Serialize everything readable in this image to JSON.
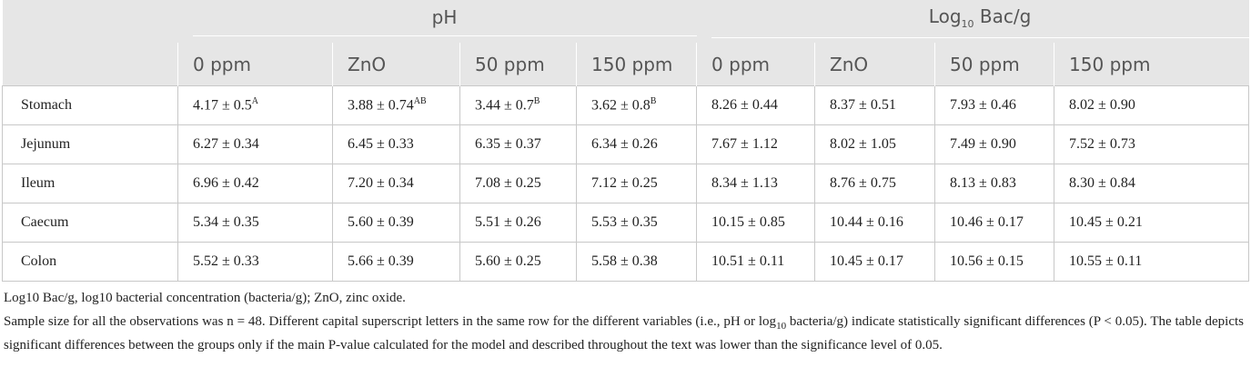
{
  "table": {
    "groups": [
      {
        "text": "pH"
      },
      {
        "text": "Log",
        "sub": "10",
        "rest": " Bac/g"
      }
    ],
    "columns": [
      "0 ppm",
      "ZnO",
      "50 ppm",
      "150 ppm",
      "0 ppm",
      "ZnO",
      "50 ppm",
      "150 ppm"
    ],
    "rows": [
      {
        "label": "Stomach",
        "cells": [
          {
            "text": "4.17 ± 0.5",
            "sup": "A"
          },
          {
            "text": "3.88 ± 0.74",
            "sup": "AB"
          },
          {
            "text": "3.44 ± 0.7",
            "sup": "B"
          },
          {
            "text": "3.62 ± 0.8",
            "sup": "B"
          },
          "8.26 ± 0.44",
          "8.37 ± 0.51",
          "7.93 ± 0.46",
          "8.02 ± 0.90"
        ]
      },
      {
        "label": "Jejunum",
        "cells": [
          "6.27 ± 0.34",
          "6.45 ± 0.33",
          "6.35 ± 0.37",
          "6.34 ± 0.26",
          "7.67 ± 1.12",
          "8.02 ± 1.05",
          "7.49 ± 0.90",
          "7.52 ± 0.73"
        ]
      },
      {
        "label": "Ileum",
        "cells": [
          "6.96 ± 0.42",
          "7.20 ± 0.34",
          "7.08 ± 0.25",
          "7.12 ± 0.25",
          "8.34 ± 1.13",
          "8.76 ± 0.75",
          "8.13 ± 0.83",
          "8.30 ± 0.84"
        ]
      },
      {
        "label": "Caecum",
        "cells": [
          "5.34 ± 0.35",
          "5.60 ± 0.39",
          "5.51 ± 0.26",
          "5.53 ± 0.35",
          "10.15 ± 0.85",
          "10.44 ± 0.16",
          "10.46 ± 0.17",
          "10.45 ± 0.21"
        ]
      },
      {
        "label": "Colon",
        "cells": [
          "5.52 ± 0.33",
          "5.66 ± 0.39",
          "5.60 ± 0.25",
          "5.58 ± 0.38",
          "10.51 ± 0.11",
          "10.45 ± 0.17",
          "10.56 ± 0.15",
          "10.55 ± 0.11"
        ]
      }
    ]
  },
  "notes": [
    {
      "text": "Log10 Bac/g, log10 bacterial concentration (bacteria/g); ZnO, zinc oxide."
    },
    {
      "text": "Sample size for all the observations was n = 48. Different capital superscript letters in the same row for the different variables (i.e., pH or log",
      "sub": "10",
      "rest": " bacteria/g) indicate statistically significant differences (P < 0.05). The table depicts significant differences between the groups only if the main P-value calculated for the model and described throughout the text was lower than the significance level of 0.05."
    }
  ]
}
